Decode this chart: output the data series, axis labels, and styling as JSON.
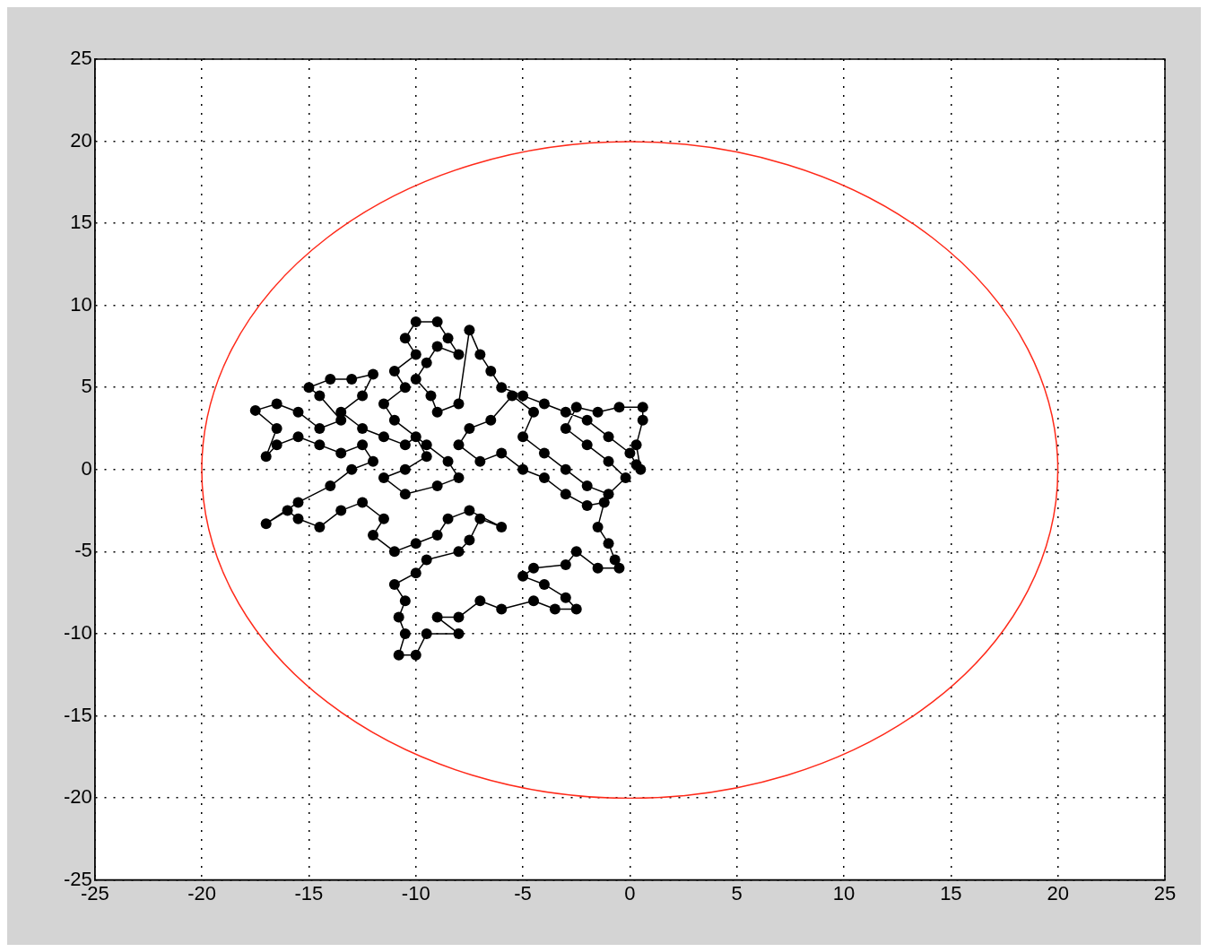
{
  "chart_data": {
    "type": "line",
    "xlim": [
      -25,
      25
    ],
    "ylim": [
      -25,
      25
    ],
    "xticks": [
      -25,
      -20,
      -15,
      -10,
      -5,
      0,
      5,
      10,
      15,
      20,
      25
    ],
    "yticks": [
      -25,
      -20,
      -15,
      -10,
      -5,
      0,
      5,
      10,
      15,
      20,
      25
    ],
    "grid": true,
    "legend": false,
    "line_style": "solid",
    "series": [
      {
        "type": "line",
        "color": "#000000",
        "marker": "circle",
        "x": [
          0.5,
          0.3,
          0.6,
          0.6,
          -0.5,
          -1.5,
          -2.5,
          -3,
          -2,
          -1,
          -0.2,
          -1,
          -2,
          -3,
          -4,
          -5,
          -4.5,
          -5.5,
          -6.5,
          -7.5,
          -8,
          -7,
          -6,
          -5,
          -4,
          -3,
          -2,
          -1.2,
          -1.5,
          -1,
          -0.7,
          -0.5,
          -1.5,
          -2.5,
          -3,
          -4.5,
          -5,
          -4,
          -3,
          -2.5,
          -3.5,
          -4.5,
          -6,
          -7,
          -8,
          -9,
          -8,
          -9.5,
          -10,
          -10.8,
          -10.5,
          -10.8,
          -10.5,
          -11,
          -10,
          -9.5,
          -8,
          -7.5,
          -7,
          -6,
          -7.5,
          -8.5,
          -9,
          -10,
          -11,
          -12,
          -11.5,
          -12.5,
          -13.5,
          -14.5,
          -15.5,
          -16,
          -17,
          -15.5,
          -14,
          -13,
          -12,
          -12.5,
          -13.5,
          -14.5,
          -15.5,
          -16.5,
          -17,
          -16.5,
          -17.5,
          -16.5,
          -15.5,
          -14.5,
          -13.5,
          -14.5,
          -15,
          -14,
          -13,
          -12,
          -12.5,
          -13.5,
          -12.5,
          -11.5,
          -10.5,
          -10,
          -9.5,
          -10.5,
          -11.5,
          -10.5,
          -9,
          -8,
          -8.5,
          -9.5,
          -11,
          -11.5,
          -10.5,
          -11,
          -10,
          -10.5,
          -10,
          -9,
          -8.5,
          -8,
          -9,
          -9.5,
          -10,
          -9.3,
          -9,
          -8,
          -7.5,
          -7,
          -6.5,
          -6,
          -5,
          -4,
          -3,
          -2,
          -1,
          0,
          0.3
        ],
        "values": [
          0,
          1.5,
          3,
          3.8,
          3.8,
          3.5,
          3.8,
          2.5,
          1.5,
          0.5,
          -0.5,
          -1.5,
          -1,
          0,
          1,
          2,
          3.5,
          4.5,
          3,
          2.5,
          1.5,
          0.5,
          1,
          0,
          -0.5,
          -1.5,
          -2.2,
          -2,
          -3.5,
          -4.5,
          -5.5,
          -6,
          -6,
          -5,
          -5.8,
          -6,
          -6.5,
          -7,
          -7.8,
          -8.5,
          -8.5,
          -8,
          -8.5,
          -8,
          -9,
          -9,
          -10,
          -10,
          -11.3,
          -11.3,
          -10,
          -9,
          -8,
          -7,
          -6.3,
          -5.5,
          -5,
          -4.3,
          -3,
          -3.5,
          -2.5,
          -3,
          -4,
          -4.5,
          -5,
          -4,
          -3,
          -2,
          -2.5,
          -3.5,
          -3,
          -2.5,
          -3.3,
          -2,
          -1,
          0,
          0.5,
          1.5,
          1,
          1.5,
          2,
          1.5,
          0.8,
          2.5,
          3.6,
          4,
          3.5,
          2.5,
          3,
          4.5,
          5,
          5.5,
          5.5,
          5.8,
          4.5,
          3.5,
          2.5,
          2,
          1.5,
          2,
          0.8,
          0,
          -0.5,
          -1.5,
          -1,
          -0.5,
          0.5,
          1.5,
          3,
          4,
          5,
          6,
          7,
          8,
          9,
          9,
          8,
          7,
          7.5,
          6.5,
          5.5,
          4.5,
          3.5,
          4,
          8.5,
          7,
          6,
          5,
          4.5,
          4,
          3.5,
          3,
          2,
          1,
          0.3
        ]
      }
    ]
  }
}
